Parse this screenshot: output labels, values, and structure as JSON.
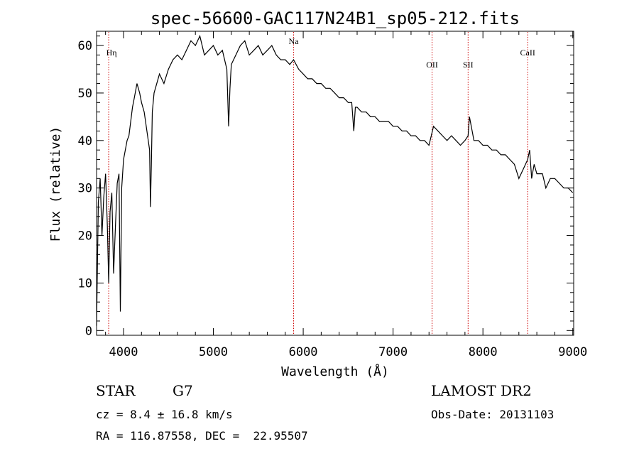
{
  "chart_data": {
    "type": "line",
    "title": "spec-56600-GAC117N24B1_sp05-212.fits",
    "xlabel": "Wavelength (Å)",
    "ylabel": "Flux (relative)",
    "xlim": [
      3700,
      9010
    ],
    "ylim": [
      -1,
      63
    ],
    "xticks": [
      4000,
      5000,
      6000,
      7000,
      8000,
      9000
    ],
    "yticks": [
      0,
      10,
      20,
      30,
      40,
      50,
      60
    ],
    "grid": false,
    "line_color": "#000000",
    "marker_color": "#cc0000",
    "lines": [
      {
        "label": "Hη",
        "x": 3835
      },
      {
        "label": "Na",
        "x": 5893
      },
      {
        "label": "OII",
        "x": 7434
      },
      {
        "label": "SII",
        "x": 7835
      },
      {
        "label": "CaII",
        "x": 8498
      }
    ],
    "series": [
      {
        "x": [
          3700,
          3720,
          3740,
          3760,
          3780,
          3800,
          3820,
          3835,
          3850,
          3870,
          3890,
          3910,
          3930,
          3950,
          3965,
          3980,
          4000,
          4020,
          4040,
          4060,
          4080,
          4100,
          4120,
          4150,
          4180,
          4200,
          4230,
          4260,
          4290,
          4300,
          4310,
          4320,
          4340,
          4370,
          4400,
          4450,
          4500,
          4550,
          4600,
          4650,
          4700,
          4750,
          4800,
          4850,
          4900,
          4950,
          5000,
          5050,
          5100,
          5150,
          5170,
          5185,
          5200,
          5250,
          5300,
          5350,
          5400,
          5450,
          5500,
          5550,
          5600,
          5650,
          5700,
          5750,
          5800,
          5850,
          5893,
          5950,
          6000,
          6050,
          6100,
          6150,
          6200,
          6250,
          6300,
          6350,
          6400,
          6450,
          6500,
          6540,
          6563,
          6580,
          6600,
          6650,
          6700,
          6750,
          6800,
          6850,
          6900,
          6950,
          7000,
          7050,
          7100,
          7150,
          7200,
          7250,
          7300,
          7350,
          7400,
          7450,
          7500,
          7550,
          7600,
          7650,
          7700,
          7750,
          7800,
          7835,
          7850,
          7880,
          7900,
          7950,
          8000,
          8050,
          8100,
          8150,
          8200,
          8250,
          8300,
          8350,
          8400,
          8450,
          8498,
          8520,
          8542,
          8570,
          8600,
          8662,
          8700,
          8750,
          8800,
          8850,
          8900,
          8950,
          9000
        ],
        "y": [
          1,
          27,
          32,
          20,
          28,
          33,
          22,
          10,
          25,
          29,
          12,
          22,
          31,
          33,
          4,
          30,
          36,
          38,
          40,
          41,
          44,
          47,
          49,
          52,
          50,
          48,
          46,
          42,
          38,
          26,
          35,
          46,
          50,
          52,
          54,
          52,
          55,
          57,
          58,
          57,
          59,
          61,
          60,
          62,
          58,
          59,
          60,
          58,
          59,
          55,
          43,
          51,
          56,
          58,
          60,
          61,
          58,
          59,
          60,
          58,
          59,
          60,
          58,
          57,
          57,
          56,
          57,
          55,
          54,
          53,
          53,
          52,
          52,
          51,
          51,
          50,
          49,
          49,
          48,
          48,
          42,
          47,
          47,
          46,
          46,
          45,
          45,
          44,
          44,
          44,
          43,
          43,
          42,
          42,
          41,
          41,
          40,
          40,
          39,
          43,
          42,
          41,
          40,
          41,
          40,
          39,
          40,
          41,
          45,
          42,
          40,
          40,
          39,
          39,
          38,
          38,
          37,
          37,
          36,
          35,
          32,
          34,
          36,
          38,
          32,
          35,
          33,
          33,
          30,
          32,
          32,
          31,
          30,
          30,
          29
        ]
      }
    ]
  },
  "info": {
    "object_class": "STAR",
    "subclass": "G7",
    "survey": "LAMOST DR2",
    "cz_line": "cz = 8.4 ± 16.8 km/s",
    "obs_date_line": "Obs-Date: 20131103",
    "radec_line": "RA = 116.87558, DEC =  22.95507"
  }
}
